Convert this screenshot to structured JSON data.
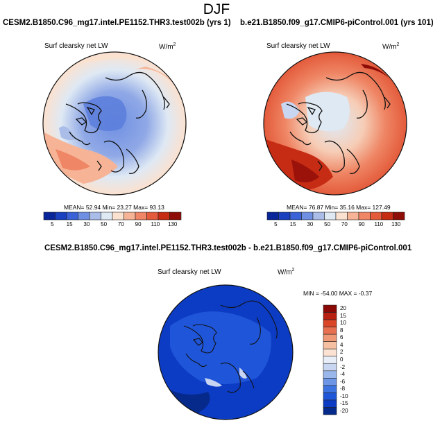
{
  "main_title": "DJF",
  "panel_left": {
    "title": "CESM2.B1850.C96_mg17.intel.PE1152.THR3.test002b (yrs 1)",
    "variable": "Surf clearsky net LW",
    "units_base": "W/m",
    "units_exp": "2",
    "stats": "MEAN= 52.94 Min= 23.27 Max= 93.13"
  },
  "panel_right": {
    "title": "b.e21.B1850.f09_g17.CMIP6-piControl.001 (yrs 101)",
    "variable": "Surf clearsky net LW",
    "units_base": "W/m",
    "units_exp": "2",
    "stats": "MEAN= 76.87 Min= 35.16 Max= 127.49"
  },
  "panel_diff": {
    "title": "CESM2.B1850.C96_mg17.intel.PE1152.THR3.test002b - b.e21.B1850.f09_g17.CMIP6-piControl.001",
    "variable": "Surf clearsky net LW",
    "units_base": "W/m",
    "units_exp": "2",
    "stats": "MIN = -54.00 MAX = -0.37"
  },
  "colors": {
    "abs_scale": [
      "#08259a",
      "#1a3fbf",
      "#3a62d6",
      "#6f8fe2",
      "#a9bde8",
      "#dfe9f4",
      "#fbe1cf",
      "#f6b396",
      "#ef8665",
      "#e35b3b",
      "#c62b14",
      "#8e0d07"
    ],
    "diff_scale": [
      "#062a8c",
      "#0c3cc4",
      "#1f55d8",
      "#3d73e0",
      "#6c95e6",
      "#9ab7ec",
      "#c8d6f2",
      "#e8eef8",
      "#fbe2d2",
      "#f5bfa2",
      "#ef9876",
      "#e77050",
      "#d94628",
      "#b82011",
      "#8a0806"
    ],
    "coast": "#111111"
  },
  "chart_data": [
    {
      "type": "heatmap",
      "title": "CESM2.B1850.C96_mg17.intel.PE1152.THR3.test002b (yrs 1)",
      "subtitle": "Surf clearsky net LW",
      "units": "W/m2",
      "projection": "north polar stereographic",
      "colorbar_levels": [
        5,
        15,
        30,
        50,
        70,
        90,
        110,
        130
      ],
      "colorbar_orientation": "horizontal",
      "mean": 52.94,
      "min": 23.27,
      "max": 93.13
    },
    {
      "type": "heatmap",
      "title": "b.e21.B1850.f09_g17.CMIP6-piControl.001 (yrs 101)",
      "subtitle": "Surf clearsky net LW",
      "units": "W/m2",
      "projection": "north polar stereographic",
      "colorbar_levels": [
        5,
        15,
        30,
        50,
        70,
        90,
        110,
        130
      ],
      "colorbar_orientation": "horizontal",
      "mean": 76.87,
      "min": 35.16,
      "max": 127.49
    },
    {
      "type": "heatmap",
      "title": "CESM2.B1850.C96_mg17.intel.PE1152.THR3.test002b - b.e21.B1850.f09_g17.CMIP6-piControl.001",
      "subtitle": "Surf clearsky net LW",
      "units": "W/m2",
      "projection": "north polar stereographic",
      "colorbar_levels": [
        20,
        15,
        10,
        8,
        6,
        4,
        2,
        0,
        -2,
        -4,
        -6,
        -8,
        -10,
        -15,
        -20
      ],
      "colorbar_orientation": "vertical",
      "min": -54.0,
      "max": -0.37
    }
  ]
}
